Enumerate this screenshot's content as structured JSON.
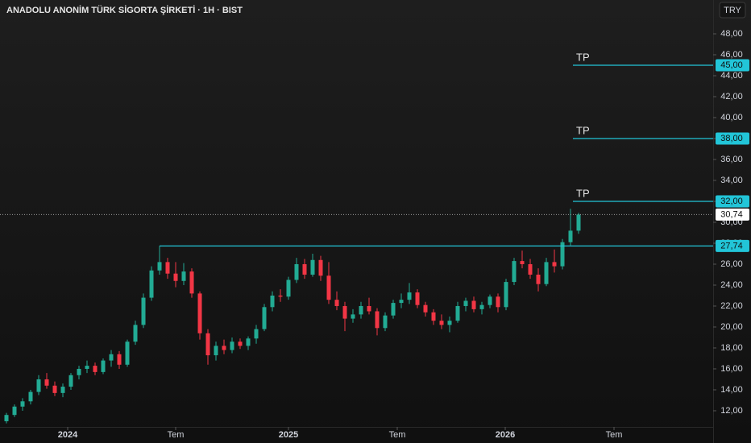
{
  "chart_data": {
    "type": "candlestick",
    "title": "ANADOLU ANONİM TÜRK SİGORTA ŞİRKETİ · 1H · BIST",
    "currency": "TRY",
    "up_color": "#22ab94",
    "down_color": "#f23645",
    "level_color": "#22c5d8",
    "open": [
      11.0,
      11.6,
      12.4,
      12.9,
      13.8,
      15.0,
      14.4,
      13.7,
      14.3,
      15.4,
      16.0,
      16.3,
      15.7,
      16.8,
      17.4,
      16.4,
      18.6,
      20.2,
      22.8,
      25.4,
      26.2,
      25.1,
      24.4,
      25.3,
      23.2,
      19.4,
      17.3,
      18.2,
      17.8,
      18.6,
      18.2,
      18.9,
      19.8,
      21.9,
      23.0,
      22.9,
      24.5,
      26.0,
      25.0,
      26.4,
      24.9,
      22.6,
      22.0,
      20.8,
      21.2,
      22.0,
      21.5,
      19.9,
      21.1,
      22.3,
      22.6,
      23.3,
      22.1,
      21.4,
      20.6,
      20.2,
      20.6,
      22.0,
      22.5,
      21.7,
      22.1,
      22.9,
      21.9,
      24.3,
      26.3,
      26.0,
      25.0,
      24.1,
      26.2,
      25.8,
      28.1,
      29.2
    ],
    "high": [
      11.8,
      12.6,
      13.2,
      14.0,
      15.4,
      15.6,
      14.8,
      14.6,
      15.6,
      16.3,
      16.8,
      16.6,
      17.0,
      17.8,
      17.7,
      18.8,
      20.6,
      23.2,
      25.8,
      27.74,
      26.6,
      26.2,
      26.1,
      25.6,
      23.4,
      19.8,
      18.6,
      18.8,
      19.0,
      18.9,
      19.1,
      20.2,
      22.2,
      23.4,
      23.6,
      24.8,
      26.6,
      26.5,
      27.0,
      26.8,
      26.2,
      23.4,
      22.4,
      21.7,
      22.4,
      22.8,
      21.8,
      21.4,
      22.6,
      23.2,
      24.2,
      23.6,
      22.4,
      21.7,
      21.2,
      21.0,
      22.4,
      22.8,
      22.9,
      22.4,
      23.1,
      23.2,
      24.6,
      26.6,
      27.3,
      26.5,
      25.6,
      26.6,
      27.4,
      28.4,
      31.3,
      30.9
    ],
    "low": [
      10.8,
      11.4,
      12.0,
      12.6,
      13.5,
      14.1,
      13.4,
      13.3,
      14.0,
      15.0,
      15.6,
      15.4,
      15.5,
      16.2,
      16.0,
      16.2,
      18.3,
      19.9,
      22.5,
      25.0,
      24.6,
      23.8,
      24.0,
      22.8,
      18.8,
      16.4,
      16.8,
      17.4,
      17.5,
      17.9,
      17.8,
      18.4,
      19.6,
      21.5,
      22.4,
      22.6,
      24.2,
      24.6,
      24.8,
      24.4,
      22.2,
      21.6,
      19.6,
      20.4,
      20.8,
      21.2,
      19.2,
      19.6,
      20.8,
      21.8,
      22.2,
      21.8,
      21.0,
      20.2,
      19.8,
      19.5,
      20.4,
      21.5,
      21.4,
      21.2,
      21.8,
      21.4,
      21.6,
      24.0,
      25.6,
      24.6,
      23.4,
      23.9,
      25.2,
      25.5,
      27.8,
      28.9
    ],
    "close": [
      11.6,
      12.4,
      12.9,
      13.8,
      15.0,
      14.4,
      13.7,
      14.3,
      15.4,
      16.0,
      16.3,
      15.7,
      16.8,
      17.4,
      16.4,
      18.6,
      20.2,
      22.8,
      25.4,
      26.2,
      25.1,
      24.4,
      25.3,
      23.2,
      19.4,
      17.3,
      18.2,
      17.8,
      18.6,
      18.2,
      18.9,
      19.8,
      21.9,
      23.0,
      22.9,
      24.5,
      26.0,
      25.0,
      26.4,
      24.9,
      22.6,
      22.0,
      20.8,
      21.2,
      22.0,
      21.5,
      19.9,
      21.1,
      22.3,
      22.6,
      23.3,
      22.1,
      21.4,
      20.6,
      20.2,
      20.6,
      22.0,
      22.5,
      21.7,
      22.1,
      22.9,
      21.9,
      24.3,
      26.3,
      26.0,
      25.0,
      24.1,
      26.2,
      25.8,
      28.1,
      29.2,
      30.74
    ],
    "xlim": [
      -0.8,
      87.7
    ],
    "xticks": [
      {
        "value": 7.6,
        "label": "2024"
      },
      {
        "value": 21,
        "label": "Tem"
      },
      {
        "value": 35,
        "label": "2025"
      },
      {
        "value": 48.5,
        "label": "Tem"
      },
      {
        "value": 61.9,
        "label": "2026"
      },
      {
        "value": 75.4,
        "label": "Tem"
      }
    ],
    "ylim": [
      10.46,
      51.23
    ],
    "yticks": [
      {
        "value": 12,
        "label": "12,00"
      },
      {
        "value": 14,
        "label": "14,00"
      },
      {
        "value": 16,
        "label": "16,00"
      },
      {
        "value": 18,
        "label": "18,00"
      },
      {
        "value": 20,
        "label": "20,00"
      },
      {
        "value": 22,
        "label": "22,00"
      },
      {
        "value": 24,
        "label": "24,00"
      },
      {
        "value": 26,
        "label": "26,00"
      },
      {
        "value": 28,
        "label": "28,00"
      },
      {
        "value": 30,
        "label": "30,00"
      },
      {
        "value": 32,
        "label": "32,00"
      },
      {
        "value": 34,
        "label": "34,00"
      },
      {
        "value": 36,
        "label": "36,00"
      },
      {
        "value": 38,
        "label": "38,00"
      },
      {
        "value": 40,
        "label": "40,00"
      },
      {
        "value": 42,
        "label": "42,00"
      },
      {
        "value": 44,
        "label": "44,00"
      },
      {
        "value": 46,
        "label": "46,00"
      },
      {
        "value": 48,
        "label": "48,00"
      }
    ],
    "targets": [
      {
        "name": "TP",
        "value": 45,
        "label": "45,00"
      },
      {
        "name": "TP",
        "value": 38,
        "label": "38,00"
      },
      {
        "name": "TP",
        "value": 32,
        "label": "32,00"
      }
    ],
    "support": {
      "value": 27.74,
      "label": "27,74"
    },
    "last_price": {
      "value": 30.74,
      "label": "30,74"
    }
  }
}
